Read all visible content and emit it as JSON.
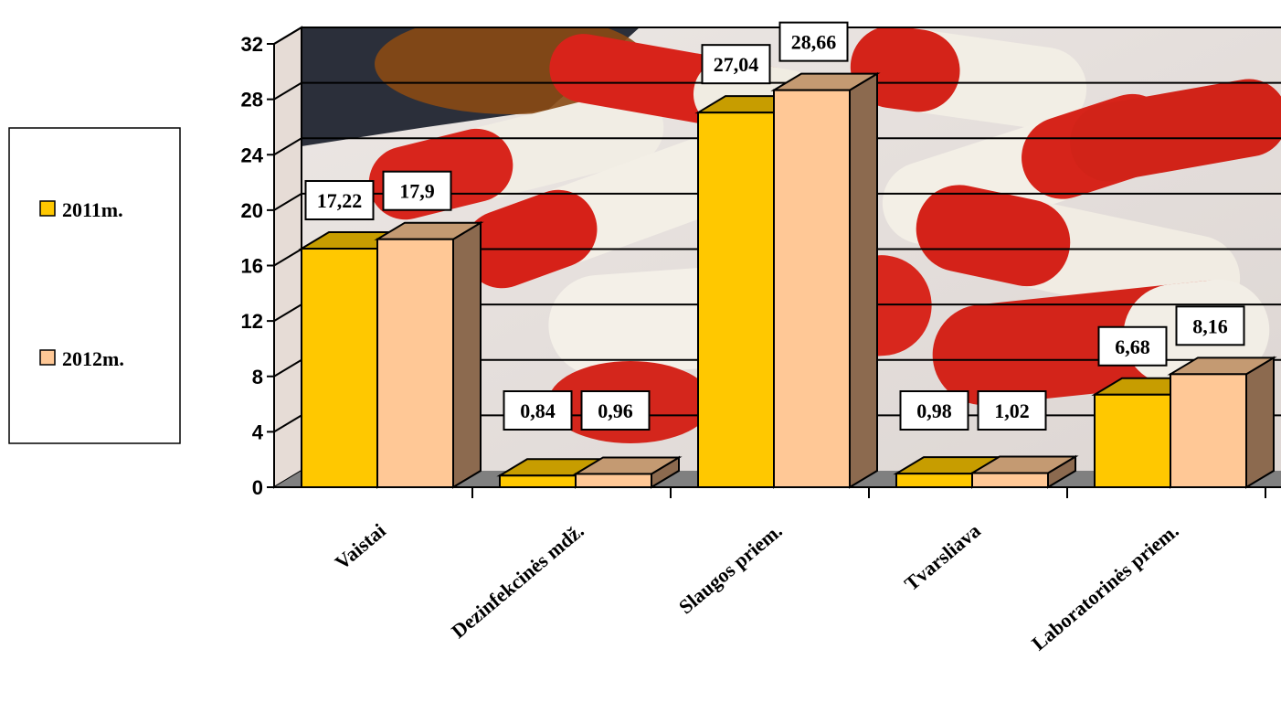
{
  "chart_data": {
    "type": "bar",
    "categories": [
      "Vaistai",
      "Dezinfekcinės mdž.",
      "Slaugos priem.",
      "Tvarsliava",
      "Laboratorinės priem."
    ],
    "series": [
      {
        "name": "2011m.",
        "values": [
          17.22,
          0.84,
          27.04,
          0.98,
          6.68
        ],
        "labels": [
          "17,22",
          "0,84",
          "27,04",
          "0,98",
          "6,68"
        ]
      },
      {
        "name": "2012m.",
        "values": [
          17.9,
          0.96,
          28.66,
          1.02,
          8.16
        ],
        "labels": [
          "17,9",
          "0,96",
          "28,66",
          "1,02",
          "8,16"
        ]
      }
    ],
    "y_ticks": [
      "0",
      "4",
      "8",
      "12",
      "16",
      "20",
      "24",
      "28",
      "32"
    ],
    "ylim": [
      0,
      32
    ],
    "legend": "left",
    "grid": true,
    "style": "3d",
    "colors": {
      "series_2011": "#ffc800",
      "series_2011_top": "#c79d00",
      "series_2012": "#ffc896",
      "series_2012_top": "#c49a72",
      "bar_side": "#8c6a4f",
      "floor": "#808080",
      "gridline": "#000000"
    }
  }
}
